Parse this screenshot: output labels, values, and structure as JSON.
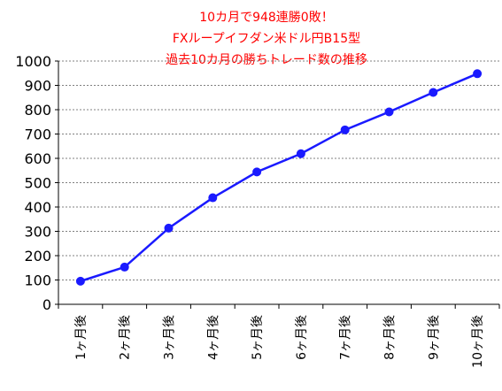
{
  "chart_data": {
    "type": "line",
    "title_lines": [
      "10カ月で948連勝0敗！",
      "FXループイフダン米ドル円B15型",
      "過去10カ月の勝ちトレード数の推移"
    ],
    "categories": [
      "1ヶ月後",
      "2ヶ月後",
      "3ヶ月後",
      "4ヶ月後",
      "5ヶ月後",
      "6ヶ月後",
      "7ヶ月後",
      "8ヶ月後",
      "9ヶ月後",
      "10ヶ月後"
    ],
    "series": [
      {
        "values": [
          95,
          153,
          313,
          438,
          544,
          619,
          717,
          791,
          871,
          948
        ]
      }
    ],
    "yticks": [
      "0",
      "100",
      "200",
      "300",
      "400",
      "500",
      "600",
      "700",
      "800",
      "900",
      "1000"
    ],
    "ylim": [
      0,
      1000
    ],
    "grid": "horizontal dashed",
    "colors": {
      "line": "#1a1aff",
      "marker": "#1a1aff",
      "title": "#ff0000",
      "grid": "#808080"
    }
  }
}
